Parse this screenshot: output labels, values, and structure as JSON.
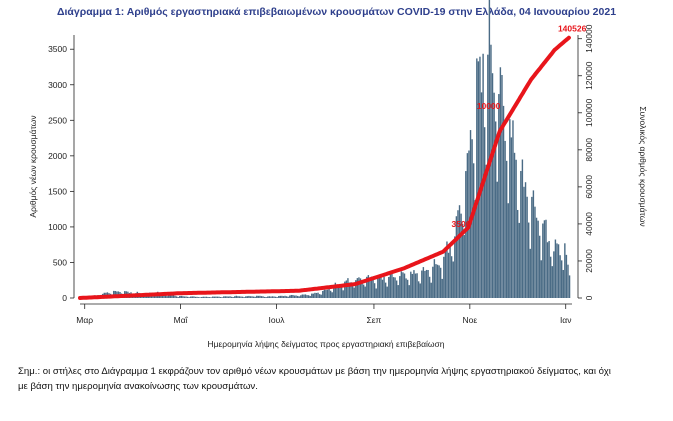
{
  "page": {
    "title": "Διάγραμμα 1: Αριθμός εργαστηριακά επιβεβαιωμένων κρουσμάτων COVID-19 στην Ελλάδα, 04 Ιανουαρίου 2021",
    "note_line1": "Σημ.: οι στήλες στο Διάγραμμα 1 εκφράζουν τον αριθμό νέων κρουσμάτων με βάση την ημερομηνία λήψης εργαστηριακού δείγματος, και όχι",
    "note_line2": "με βάση την ημερομηνία ανακοίνωσης των κρουσμάτων."
  },
  "chart_data": {
    "type": "bar",
    "title": "Διάγραμμα 1: Αριθμός εργαστηριακά επιβεβαιωμένων κρουσμάτων COVID-19 στην Ελλάδα, 04 Ιανουαρίου 2021",
    "xlabel": "Ημερομηνία λήψης δείγματος προς εργαστηριακή επιβεβαίωση",
    "ylabel": "Αριθμός νέων κρουσμάτων",
    "y2label": "Συνολικός αριθμός κρουσμάτων",
    "x_tick_labels": [
      "Μαρ",
      "Μαΐ",
      "Ιουλ",
      "Σεπ",
      "Νοε",
      "Ιαν"
    ],
    "ylim": [
      0,
      3700
    ],
    "y_ticks": [
      0,
      500,
      1000,
      1500,
      2000,
      2500,
      3000,
      3500
    ],
    "y2lim": [
      0,
      142000
    ],
    "y2_ticks": [
      0,
      20000,
      40000,
      60000,
      80000,
      100000,
      120000,
      140000
    ],
    "grid": false,
    "colors": {
      "bars": "#4a6b85",
      "cumulative_line": "#e8151b",
      "title": "#2e3f8c"
    },
    "series": [
      {
        "kind": "bar",
        "weekly_anchor_points": [
          [
            "2020-02-27",
            2
          ],
          [
            "2020-03-05",
            20
          ],
          [
            "2020-03-12",
            60
          ],
          [
            "2020-03-19",
            90
          ],
          [
            "2020-03-26",
            85
          ],
          [
            "2020-04-02",
            70
          ],
          [
            "2020-04-09",
            60
          ],
          [
            "2020-04-16",
            80
          ],
          [
            "2020-04-23",
            40
          ],
          [
            "2020-04-30",
            25
          ],
          [
            "2020-05-07",
            20
          ],
          [
            "2020-05-14",
            15
          ],
          [
            "2020-05-21",
            18
          ],
          [
            "2020-05-28",
            20
          ],
          [
            "2020-06-04",
            25
          ],
          [
            "2020-06-11",
            22
          ],
          [
            "2020-06-18",
            30
          ],
          [
            "2020-06-25",
            20
          ],
          [
            "2020-07-02",
            25
          ],
          [
            "2020-07-09",
            35
          ],
          [
            "2020-07-16",
            40
          ],
          [
            "2020-07-23",
            55
          ],
          [
            "2020-07-30",
            90
          ],
          [
            "2020-08-06",
            160
          ],
          [
            "2020-08-13",
            220
          ],
          [
            "2020-08-20",
            250
          ],
          [
            "2020-08-27",
            280
          ],
          [
            "2020-09-03",
            270
          ],
          [
            "2020-09-10",
            300
          ],
          [
            "2020-09-17",
            320
          ],
          [
            "2020-09-24",
            330
          ],
          [
            "2020-10-01",
            360
          ],
          [
            "2020-10-08",
            420
          ],
          [
            "2020-10-15",
            550
          ],
          [
            "2020-10-22",
            900
          ],
          [
            "2020-10-29",
            1650
          ],
          [
            "2020-11-05",
            2900
          ],
          [
            "2020-11-12",
            3500
          ],
          [
            "2020-11-19",
            2900
          ],
          [
            "2020-11-26",
            2300
          ],
          [
            "2020-12-03",
            1700
          ],
          [
            "2020-12-10",
            1300
          ],
          [
            "2020-12-17",
            1000
          ],
          [
            "2020-12-24",
            700
          ],
          [
            "2020-12-31",
            700
          ],
          [
            "2021-01-03",
            300
          ]
        ]
      },
      {
        "kind": "line",
        "cumulative_anchor_points": [
          [
            "2020-02-27",
            0
          ],
          [
            "2020-05-01",
            2600
          ],
          [
            "2020-07-15",
            3900
          ],
          [
            "2020-08-20",
            7500
          ],
          [
            "2020-09-20",
            16000
          ],
          [
            "2020-10-15",
            25000
          ],
          [
            "2020-10-31",
            38000
          ],
          [
            "2020-11-20",
            90000
          ],
          [
            "2020-12-10",
            118000
          ],
          [
            "2020-12-25",
            134000
          ],
          [
            "2021-01-03",
            140526
          ]
        ]
      }
    ],
    "annotations": [
      "140526",
      "10000",
      "3500"
    ]
  }
}
